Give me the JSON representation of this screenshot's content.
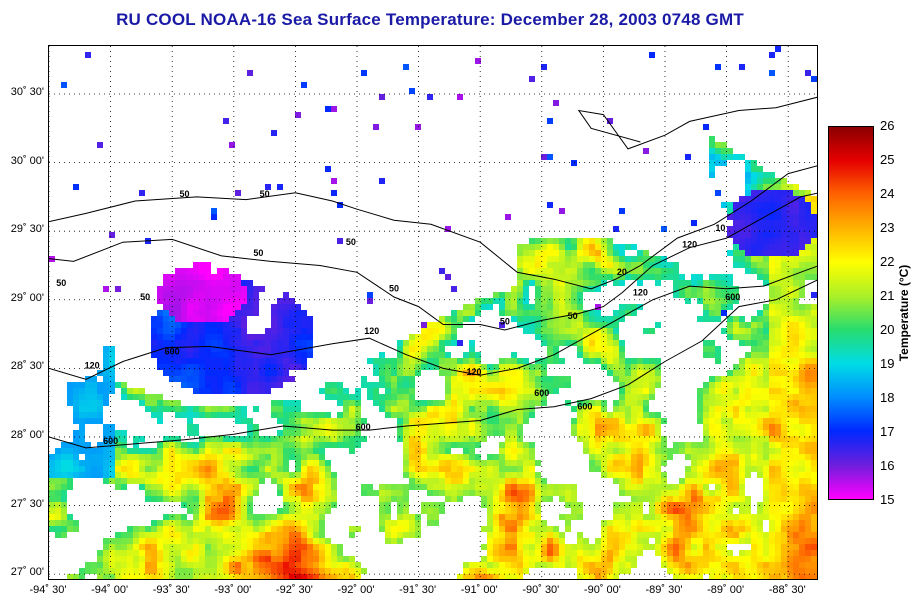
{
  "title": "RU COOL  NOAA-16  Sea Surface Temperature:  December 28, 2003 0748 GMT",
  "colorbar": {
    "label": "Temperature (°C)",
    "min": 15,
    "max": 26,
    "ticks": [
      "26",
      "25",
      "24",
      "23",
      "22",
      "21",
      "20",
      "19",
      "18",
      "17",
      "16",
      "15"
    ]
  },
  "axes": {
    "lat_labels": [
      "30˚ 30'",
      "30˚ 00'",
      "29˚ 30'",
      "29˚ 00'",
      "28˚ 30'",
      "28˚ 00'",
      "27˚ 30'",
      "27˚ 00'"
    ],
    "lon_labels": [
      "-94˚ 30'",
      "-94˚ 00'",
      "-93˚ 30'",
      "-93˚ 00'",
      "-92˚ 30'",
      "-92˚ 00'",
      "-91˚ 30'",
      "-91˚ 00'",
      "-90˚ 30'",
      "-90˚ 00'",
      "-89˚ 30'",
      "-89˚ 00'",
      "-88˚ 30'"
    ],
    "lat_range": [
      26.95,
      30.85
    ],
    "lon_range": [
      -94.5,
      -88.25
    ]
  },
  "contour_labels": [
    {
      "text": "50",
      "lon": -93.4,
      "lat": 29.75
    },
    {
      "text": "50",
      "lon": -92.75,
      "lat": 29.75
    },
    {
      "text": "50",
      "lon": -92.8,
      "lat": 29.32
    },
    {
      "text": "50",
      "lon": -92.05,
      "lat": 29.4
    },
    {
      "text": "50",
      "lon": -91.7,
      "lat": 29.06
    },
    {
      "text": "50",
      "lon": -94.4,
      "lat": 29.1
    },
    {
      "text": "50",
      "lon": -93.72,
      "lat": 29.0
    },
    {
      "text": "50",
      "lon": -90.8,
      "lat": 28.82
    },
    {
      "text": "50",
      "lon": -90.25,
      "lat": 28.86
    },
    {
      "text": "120",
      "lon": -91.88,
      "lat": 28.75
    },
    {
      "text": "120",
      "lon": -94.15,
      "lat": 28.5
    },
    {
      "text": "120",
      "lon": -91.05,
      "lat": 28.45
    },
    {
      "text": "120",
      "lon": -89.7,
      "lat": 29.03
    },
    {
      "text": "120",
      "lon": -89.3,
      "lat": 29.38
    },
    {
      "text": "20",
      "lon": -89.85,
      "lat": 29.18
    },
    {
      "text": "600",
      "lon": -93.5,
      "lat": 28.6
    },
    {
      "text": "600",
      "lon": -94.0,
      "lat": 27.95
    },
    {
      "text": "600",
      "lon": -91.95,
      "lat": 28.05
    },
    {
      "text": "600",
      "lon": -90.5,
      "lat": 28.3
    },
    {
      "text": "600",
      "lon": -90.15,
      "lat": 28.2
    },
    {
      "text": "600",
      "lon": -88.95,
      "lat": 29.0
    },
    {
      "text": "10",
      "lon": -89.05,
      "lat": 29.5
    }
  ]
}
